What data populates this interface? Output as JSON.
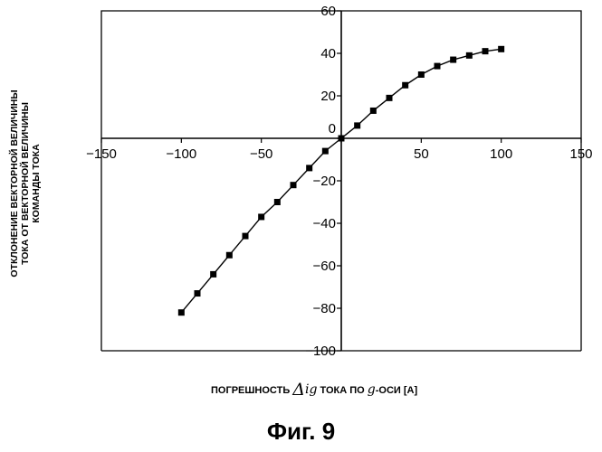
{
  "chart_data": {
    "type": "line",
    "title": "",
    "ylabel_lines": [
      "ОТКЛОНЕНИЕ ВЕКТОРНОЙ ВЕЛИЧИНЫ",
      "ТОКА ОТ ВЕКТОРНОЙ ВЕЛИЧИНЫ",
      "КОМАНДЫ ТОКА"
    ],
    "xlabel": {
      "prefix": "ПОГРЕШНОСТЬ ",
      "delta": "Δ",
      "symbol": "ig",
      "mid": " ТОКА ПО ",
      "axis_symbol": "g",
      "suffix": "-ОСИ [А]"
    },
    "figure_caption": "Фиг. 9",
    "xlim": [
      -150,
      150
    ],
    "ylim": [
      -100,
      60
    ],
    "x_ticks": [
      -150,
      -100,
      -50,
      0,
      50,
      100,
      150
    ],
    "y_ticks": [
      60,
      40,
      20,
      0,
      -20,
      -40,
      -60,
      -80,
      -100
    ],
    "grid": false,
    "marker": "square",
    "series": [
      {
        "x": [
          -100,
          -90,
          -80,
          -70,
          -60,
          -50,
          -40,
          -30,
          -20,
          -10,
          0,
          10,
          20,
          30,
          40,
          50,
          60,
          70,
          80,
          90,
          100
        ],
        "y": [
          -82,
          -73,
          -64,
          -55,
          -46,
          -37,
          -30,
          -22,
          -14,
          -6,
          0,
          6,
          13,
          19,
          25,
          30,
          34,
          37,
          39,
          41,
          42
        ]
      }
    ]
  }
}
